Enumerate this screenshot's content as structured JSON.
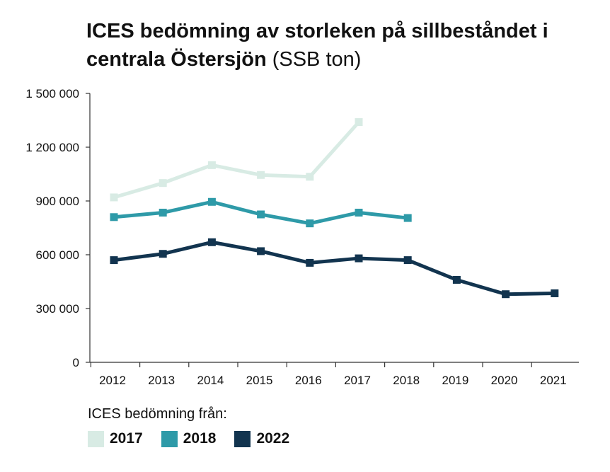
{
  "chart_data": {
    "type": "line",
    "title": "ICES bedömning av storleken på sillbeståndet i centrala Östersjön",
    "title_unit": "(SSB ton)",
    "categories": [
      "2012",
      "2013",
      "2014",
      "2015",
      "2016",
      "2017",
      "2018",
      "2019",
      "2020",
      "2021"
    ],
    "y_tick_labels": [
      "0",
      "300 000",
      "600 000",
      "900 000",
      "1 200 000",
      "1 500 000"
    ],
    "y_ticks": [
      0,
      300000,
      600000,
      900000,
      1200000,
      1500000
    ],
    "ylim": [
      0,
      1500000
    ],
    "grid": false,
    "legend_title": "ICES bedömning från:",
    "legend_position": "bottom-left",
    "series": [
      {
        "name": "2017",
        "color": "#d8ebe4",
        "values": [
          920000,
          1000000,
          1100000,
          1045000,
          1035000,
          1340000,
          null,
          null,
          null,
          null
        ]
      },
      {
        "name": "2018",
        "color": "#2e9aa8",
        "values": [
          810000,
          835000,
          895000,
          825000,
          775000,
          835000,
          805000,
          null,
          null,
          null
        ]
      },
      {
        "name": "2022",
        "color": "#12344f",
        "values": [
          570000,
          605000,
          670000,
          620000,
          555000,
          580000,
          570000,
          460000,
          380000,
          385000
        ]
      }
    ]
  }
}
